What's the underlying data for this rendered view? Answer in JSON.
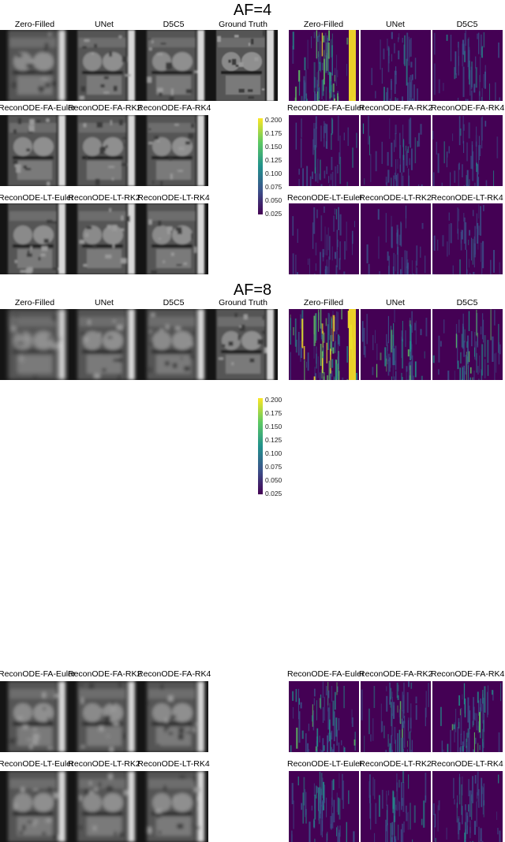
{
  "blocks": [
    {
      "heading": "AF=4",
      "mri_rows": [
        [
          "Zero-Filled",
          "UNet",
          "D5C5",
          "Ground Truth"
        ],
        [
          "ReconODE-FA-Euler",
          "ReconODE-FA-RK2",
          "ReconODE-FA-RK4"
        ],
        [
          "ReconODE-LT-Euler",
          "ReconODE-LT-RK2",
          "ReconODE-LT-RK4"
        ]
      ],
      "error_rows": [
        [
          "Zero-Filled",
          "UNet",
          "D5C5"
        ],
        [
          "ReconODE-FA-Euler",
          "ReconODE-FA-RK2",
          "ReconODE-FA-RK4"
        ],
        [
          "ReconODE-LT-Euler",
          "ReconODE-LT-RK2",
          "ReconODE-LT-RK4"
        ]
      ],
      "colorbar_ticks": [
        "0.200",
        "0.175",
        "0.150",
        "0.125",
        "0.100",
        "0.075",
        "0.050",
        "0.025"
      ],
      "error_levels": [
        [
          0.85,
          0.3,
          0.35
        ],
        [
          0.3,
          0.3,
          0.3
        ],
        [
          0.25,
          0.25,
          0.25
        ]
      ]
    },
    {
      "heading": "AF=8",
      "mri_rows": [
        [
          "Zero-Filled",
          "UNet",
          "D5C5",
          "Ground Truth"
        ],
        [
          "ReconODE-FA-Euler",
          "ReconODE-FA-RK2",
          "ReconODE-FA-RK4"
        ],
        [
          "ReconODE-LT-Euler",
          "ReconODE-LT-RK2",
          "ReconODE-LT-RK4"
        ]
      ],
      "error_rows": [
        [
          "Zero-Filled",
          "UNet",
          "D5C5"
        ],
        [
          "ReconODE-FA-Euler",
          "ReconODE-FA-RK2",
          "ReconODE-FA-RK4"
        ],
        [
          "ReconODE-LT-Euler",
          "ReconODE-LT-RK2",
          "ReconODE-LT-RK4"
        ]
      ],
      "colorbar_ticks": [
        "0.200",
        "0.175",
        "0.150",
        "0.125",
        "0.100",
        "0.075",
        "0.050",
        "0.025"
      ],
      "error_levels": [
        [
          1.0,
          0.6,
          0.6
        ],
        [
          0.6,
          0.6,
          0.6
        ],
        [
          0.5,
          0.45,
          0.45
        ]
      ]
    }
  ],
  "colormap": [
    "#440154",
    "#3b528b",
    "#21918c",
    "#5ec962",
    "#fde725"
  ]
}
